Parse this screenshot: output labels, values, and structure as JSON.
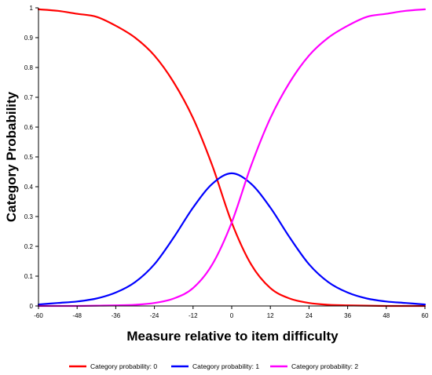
{
  "chart_data": {
    "type": "line",
    "xlabel": "Measure relative to item difficulty",
    "ylabel": "Category Probability",
    "xlim": [
      -60,
      60
    ],
    "ylim": [
      0,
      1
    ],
    "x_ticks": [
      -60,
      -48,
      -36,
      -24,
      -12,
      0,
      12,
      24,
      36,
      48,
      60
    ],
    "x_tick_labels": [
      "-60",
      "-48",
      "-36",
      "-24",
      "-12",
      "0",
      "12",
      "24",
      "36",
      "48",
      "60"
    ],
    "y_ticks": [
      0,
      0.1,
      0.2,
      0.3,
      0.4,
      0.5,
      0.6,
      0.7,
      0.8,
      0.9,
      1
    ],
    "y_tick_labels": [
      "0",
      "0.1",
      "0.2",
      "0.3",
      "0.4",
      "0.5",
      "0.6",
      "0.7",
      "0.8",
      "0.9",
      "1"
    ],
    "grid": false,
    "legend_position": "bottom",
    "x": [
      -60,
      -54,
      -48,
      -42,
      -36,
      -30,
      -24,
      -18,
      -12,
      -6,
      0,
      6,
      12,
      18,
      24,
      30,
      36,
      42,
      48,
      54,
      60
    ],
    "series": [
      {
        "name": "Category probability: 0",
        "color": "#ff0000",
        "values": [
          0.995,
          0.99,
          0.98,
          0.97,
          0.94,
          0.9,
          0.84,
          0.75,
          0.63,
          0.47,
          0.28,
          0.14,
          0.06,
          0.025,
          0.01,
          0.004,
          0.002,
          0.001,
          0,
          0,
          0
        ]
      },
      {
        "name": "Category probability: 1",
        "color": "#0000ff",
        "values": [
          0.005,
          0.01,
          0.015,
          0.025,
          0.045,
          0.08,
          0.14,
          0.23,
          0.33,
          0.41,
          0.445,
          0.41,
          0.33,
          0.23,
          0.14,
          0.08,
          0.045,
          0.025,
          0.015,
          0.01,
          0.005
        ]
      },
      {
        "name": "Category probability: 2",
        "color": "#ff00ff",
        "values": [
          0,
          0,
          0,
          0.001,
          0.002,
          0.004,
          0.01,
          0.025,
          0.06,
          0.14,
          0.28,
          0.47,
          0.63,
          0.75,
          0.84,
          0.9,
          0.94,
          0.97,
          0.98,
          0.99,
          0.995
        ]
      }
    ]
  }
}
